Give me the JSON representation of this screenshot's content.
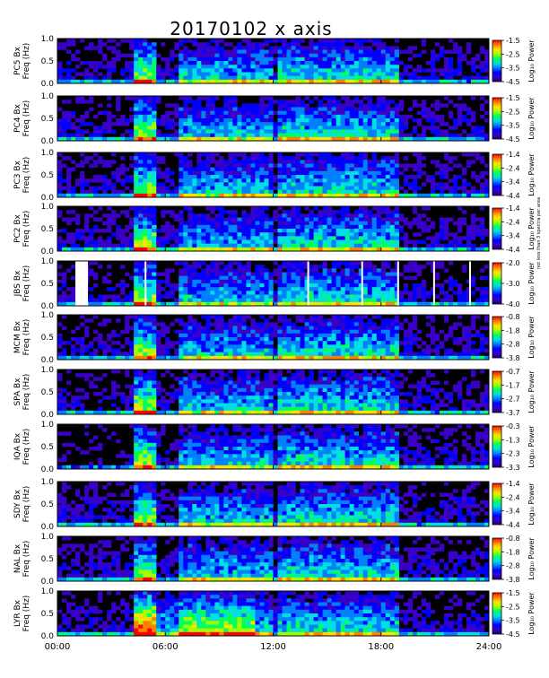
{
  "title": "20170102 x axis",
  "x_ticks": [
    "00:00",
    "06:00",
    "12:00",
    "18:00",
    "24:00"
  ],
  "freq_axis_label": "Freq (Hz)",
  "y_ticks": [
    "0.0",
    "0.5",
    "1.0"
  ],
  "colorbar_label": "Log₁₀ Power",
  "credit_text": "not less than 3 spectra per area",
  "colors": {
    "scale": [
      "#1a0070",
      "#3a00c8",
      "#0000ff",
      "#0080ff",
      "#00e0e0",
      "#00ff60",
      "#a0ff00",
      "#ffe000",
      "#ff8000",
      "#ff0000"
    ],
    "background": "#000000",
    "gap_white": "#ffffff"
  },
  "chart_data": [
    {
      "type": "heatmap",
      "station_label": "PC5 Bx",
      "x_range": [
        0,
        24
      ],
      "y_range": [
        0,
        1.0
      ],
      "colorbar_ticks": [
        "-1.5",
        "-2.5",
        "-3.5",
        "-4.5"
      ]
    },
    {
      "type": "heatmap",
      "station_label": "PC4 Bx",
      "x_range": [
        0,
        24
      ],
      "y_range": [
        0,
        1.0
      ],
      "colorbar_ticks": [
        "-1.5",
        "-2.5",
        "-3.5",
        "-4.5"
      ]
    },
    {
      "type": "heatmap",
      "station_label": "PC3 Bx",
      "x_range": [
        0,
        24
      ],
      "y_range": [
        0,
        1.0
      ],
      "colorbar_ticks": [
        "-1.4",
        "-2.4",
        "-3.4",
        "-4.4"
      ]
    },
    {
      "type": "heatmap",
      "station_label": "PC2 Bx",
      "x_range": [
        0,
        24
      ],
      "y_range": [
        0,
        1.0
      ],
      "colorbar_ticks": [
        "-1.4",
        "-2.4",
        "-3.4",
        "-4.4"
      ]
    },
    {
      "type": "heatmap",
      "station_label": "JBS Bx",
      "x_range": [
        0,
        24
      ],
      "y_range": [
        0,
        1.0
      ],
      "colorbar_ticks": [
        "-2.0",
        "-3.0",
        "-4.0"
      ]
    },
    {
      "type": "heatmap",
      "station_label": "MCM Bx",
      "x_range": [
        0,
        24
      ],
      "y_range": [
        0,
        1.0
      ],
      "colorbar_ticks": [
        "-0.8",
        "-1.8",
        "-2.8",
        "-3.8"
      ]
    },
    {
      "type": "heatmap",
      "station_label": "SPA Bx",
      "x_range": [
        0,
        24
      ],
      "y_range": [
        0,
        1.0
      ],
      "colorbar_ticks": [
        "-0.7",
        "-1.7",
        "-2.7",
        "-3.7"
      ]
    },
    {
      "type": "heatmap",
      "station_label": "IQA Bx",
      "x_range": [
        0,
        24
      ],
      "y_range": [
        0,
        1.0
      ],
      "colorbar_ticks": [
        "-0.3",
        "-1.3",
        "-2.3",
        "-3.3"
      ]
    },
    {
      "type": "heatmap",
      "station_label": "SDY Bx",
      "x_range": [
        0,
        24
      ],
      "y_range": [
        0,
        1.0
      ],
      "colorbar_ticks": [
        "-1.4",
        "-2.4",
        "-3.4",
        "-4.4"
      ]
    },
    {
      "type": "heatmap",
      "station_label": "NAL Bx",
      "x_range": [
        0,
        24
      ],
      "y_range": [
        0,
        1.0
      ],
      "colorbar_ticks": [
        "-0.8",
        "-1.8",
        "-2.8",
        "-3.8"
      ]
    },
    {
      "type": "heatmap",
      "station_label": "LYR Bx",
      "x_range": [
        0,
        24
      ],
      "y_range": [
        0,
        1.0
      ],
      "colorbar_ticks": [
        "-1.5",
        "-2.5",
        "-3.5",
        "-4.5"
      ]
    }
  ]
}
